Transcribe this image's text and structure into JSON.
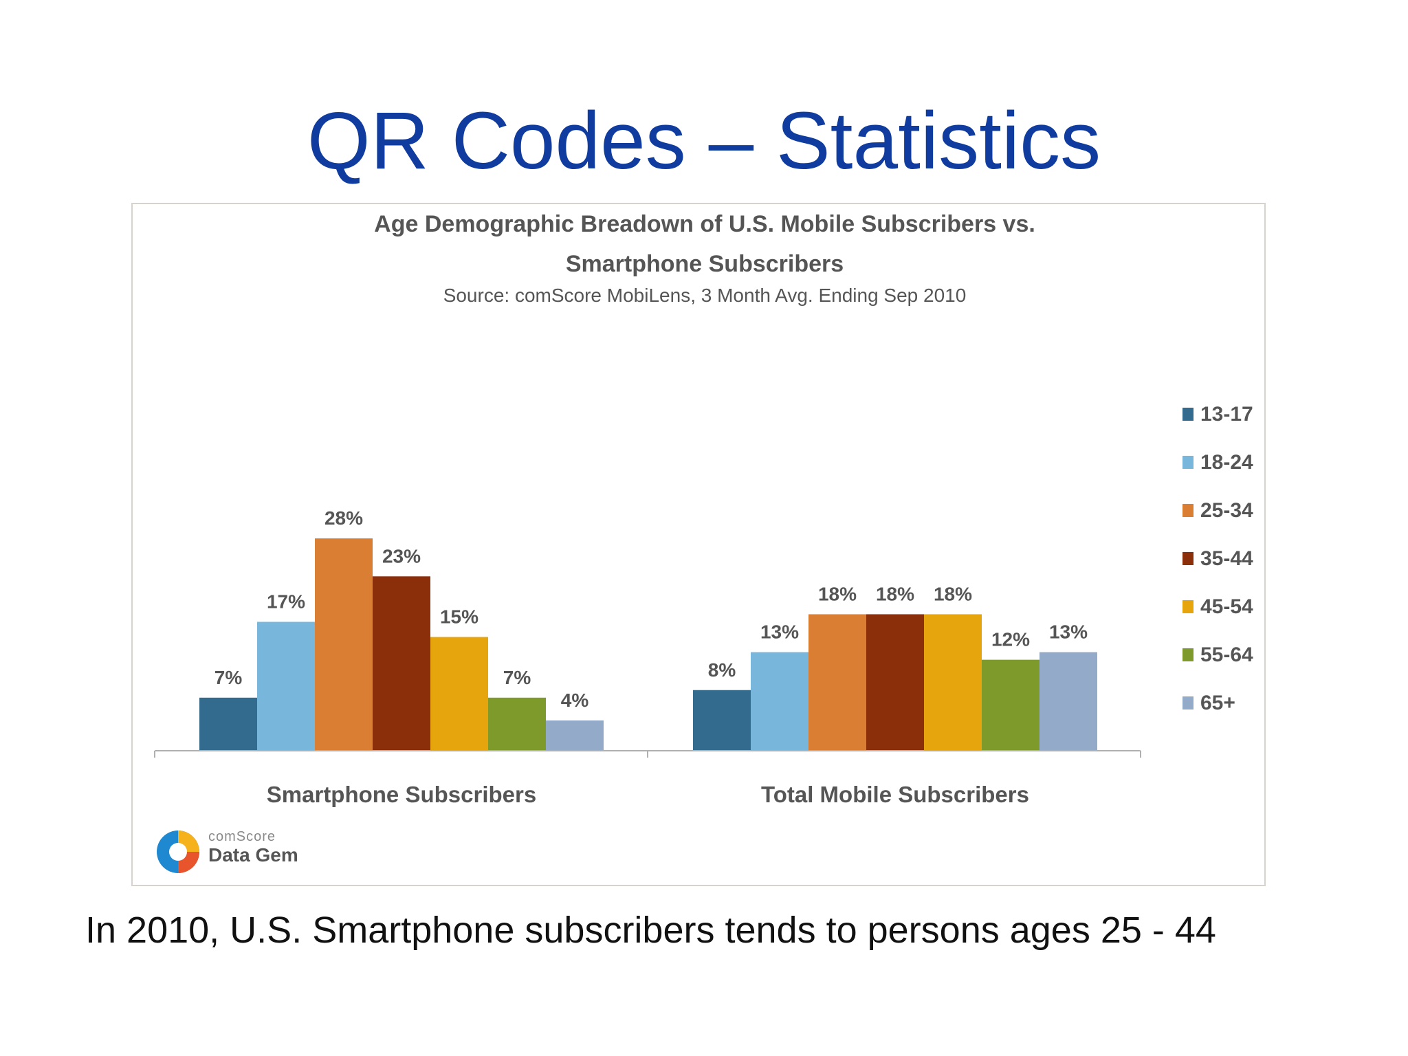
{
  "slide": {
    "title": "QR Codes – Statistics",
    "caption": "In 2010, U.S. Smartphone subscribers tends to persons ages 25 - 44"
  },
  "logo": {
    "brand": "comScore",
    "product": "Data Gem"
  },
  "chart_data": {
    "type": "bar",
    "title": "Age Demographic Breadown of U.S. Mobile Subscribers vs. Smartphone Subscribers",
    "title_lines": [
      "Age Demographic Breadown of U.S. Mobile Subscribers vs.",
      "Smartphone Subscribers"
    ],
    "subtitle": "Source: comScore MobiLens, 3 Month Avg. Ending Sep 2010",
    "categories": [
      "Smartphone Subscribers",
      "Total Mobile Subscribers"
    ],
    "value_format": "percent",
    "ylim": [
      0,
      30
    ],
    "grid": false,
    "legend_position": "right",
    "series": [
      {
        "name": "13-17",
        "color": "#336b8e",
        "values": [
          7,
          8
        ]
      },
      {
        "name": "18-24",
        "color": "#78b6dc",
        "values": [
          17,
          13
        ]
      },
      {
        "name": "25-34",
        "color": "#da7e34",
        "values": [
          28,
          18
        ]
      },
      {
        "name": "35-44",
        "color": "#8b2f0a",
        "values": [
          23,
          18
        ]
      },
      {
        "name": "45-54",
        "color": "#e6a50c",
        "values": [
          15,
          18
        ]
      },
      {
        "name": "55-64",
        "color": "#7d9a2a",
        "values": [
          7,
          12
        ]
      },
      {
        "name": "65+",
        "color": "#93abc8",
        "values": [
          4,
          13
        ]
      }
    ]
  }
}
